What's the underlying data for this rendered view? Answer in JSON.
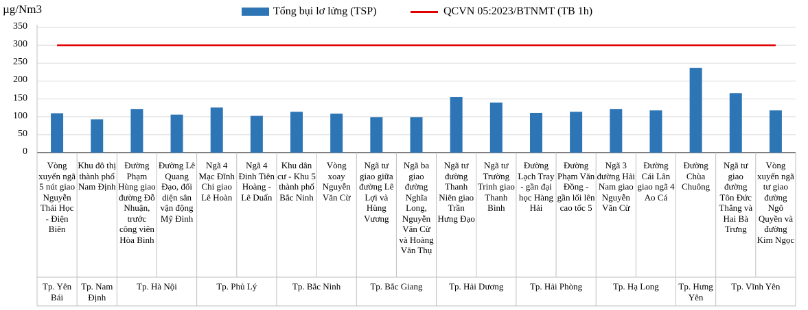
{
  "chart_data": {
    "type": "bar",
    "ylabel": "µg/Nm3",
    "ylim": [
      0,
      350
    ],
    "yticks": [
      0,
      50,
      100,
      150,
      200,
      250,
      300,
      350
    ],
    "legend_position": "top",
    "categories": [
      "Vòng xuyến ngã 5 nút giao Nguyễn Thái Học - Điện Biên",
      "Khu đô thị thành phố Nam Định",
      "Đường Phạm Hùng giao đường Đỗ Nhuận, trước công viên Hòa Bình",
      "Đường Lê Quang Đạo, đối diện sân vận động Mỹ Đình",
      "Ngã 4 Mạc Đĩnh Chi giao Lê Hoàn",
      "Ngã 4 Đinh Tiên Hoàng - Lê Duẩn",
      "Khu dân cư - Khu 5 thành phố Bắc Ninh",
      "Vòng xoay Nguyễn Văn Cừ",
      "Ngã tư giao giữa đường Lê Lợi và Hùng Vương",
      "Ngã ba giao đường Nghĩa Long, Nguyễn Văn Cừ và Hoàng Văn Thụ",
      "Ngã tư đường Thanh Niên giao Trần Hưng Đạo",
      "Ngã tư Trường Trinh giao Thanh Bình",
      "Đường Lạch Tray - gần đại học Hàng Hải",
      "Đường Phạm Văn Đồng - gần lối lên cao tốc 5",
      "Ngã 3 đường Hải Nam giao Nguyễn Văn Cừ",
      "Đường Cái Lân giao ngã 4 Ao Cá",
      "Đường Chùa Chuông",
      "Ngã tư giao đường Tôn Đức Thắng và Hai Bà Trưng",
      "Vòng xuyến ngã tư giao đường Ngô Quyền và đường Kim Ngọc"
    ],
    "groups": [
      {
        "name": "Tp. Yên Bái",
        "span": 1
      },
      {
        "name": "Tp. Nam Định",
        "span": 1
      },
      {
        "name": "Tp. Hà Nội",
        "span": 2
      },
      {
        "name": "Tp. Phủ Lý",
        "span": 2
      },
      {
        "name": "Tp. Bắc Ninh",
        "span": 2
      },
      {
        "name": "Tp. Bắc Giang",
        "span": 2
      },
      {
        "name": "Tp. Hải Dương",
        "span": 2
      },
      {
        "name": "Tp. Hải Phòng",
        "span": 2
      },
      {
        "name": "Tp. Hạ Long",
        "span": 2
      },
      {
        "name": "Tp. Hưng Yên",
        "span": 1
      },
      {
        "name": "Tp. Vĩnh Yên",
        "span": 2
      }
    ],
    "series": [
      {
        "name": "Tổng bụi lơ lửng (TSP)",
        "type": "bar",
        "color": "#2E75B6",
        "values": [
          110,
          93,
          122,
          106,
          126,
          103,
          114,
          109,
          99,
          99,
          155,
          140,
          111,
          114,
          122,
          118,
          237,
          166,
          118
        ]
      },
      {
        "name": "QCVN 05:2023/BTNMT (TB 1h)",
        "type": "line",
        "color": "#E00000",
        "value": 300
      }
    ]
  }
}
